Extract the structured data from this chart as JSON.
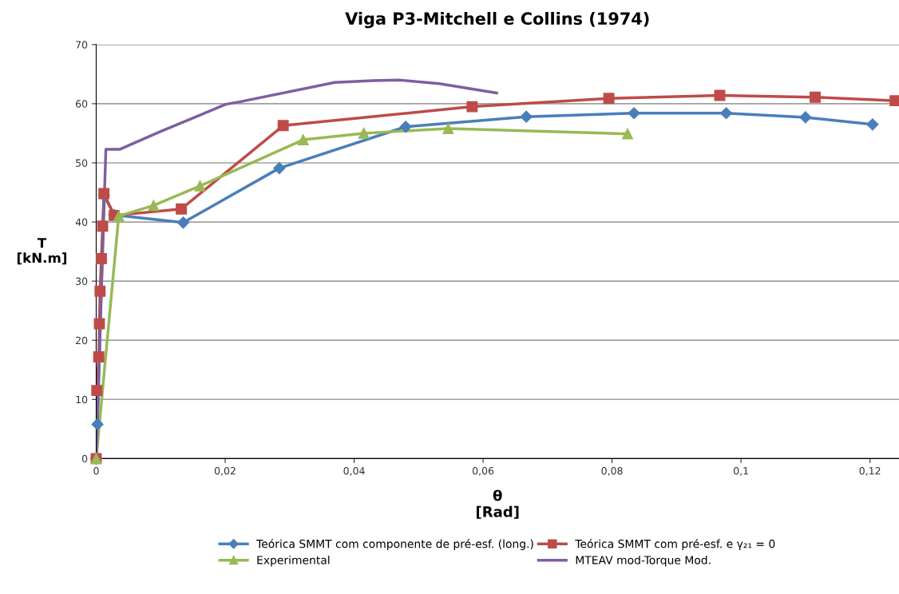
{
  "chart_data": {
    "type": "line",
    "title": "Viga P3-Mitchell e Collins (1974)",
    "xlabel": "θ\n[Rad]",
    "ylabel": "T\n[kN.m]",
    "xlim": [
      0,
      0.1245
    ],
    "ylim": [
      0,
      70
    ],
    "xticks": [
      0,
      {
        "value": 0.02,
        "label": "0,02"
      },
      {
        "value": 0.04,
        "label": "0,04"
      },
      {
        "value": 0.06,
        "label": "0,06"
      },
      {
        "value": 0.08,
        "label": "0,08"
      },
      {
        "value": 0.1,
        "label": "0,1"
      },
      {
        "value": 0.12,
        "label": "0,12"
      }
    ],
    "yticks": [
      0,
      10,
      20,
      30,
      40,
      50,
      60,
      70
    ],
    "grid": "y",
    "legend": "bottom",
    "series": [
      {
        "name": "Teórica SMMT com componente de pré-esf. (long.)",
        "color": "#4a7ebb",
        "marker": "diamond",
        "x": [
          0,
          0.0002,
          0.0012,
          0.0028,
          0.0135,
          0.0284,
          0.048,
          0.0667,
          0.0834,
          0.0977,
          0.11,
          0.1204
        ],
        "values": [
          0,
          5.8,
          44.5,
          41.2,
          39.9,
          49.1,
          56.1,
          57.8,
          58.4,
          58.4,
          57.7,
          56.5
        ]
      },
      {
        "name": "Teórica SMMT com pré-esf. e γ₂₁ = 0",
        "color": "#be4b48",
        "marker": "square",
        "x": [
          0,
          0.0001,
          0.0004,
          0.0005,
          0.0006,
          0.0008,
          0.001,
          0.0012,
          0.0028,
          0.0132,
          0.029,
          0.0583,
          0.0795,
          0.0967,
          0.1115,
          0.1239
        ],
        "values": [
          0,
          11.5,
          17.2,
          22.8,
          28.3,
          33.8,
          39.3,
          44.8,
          41.1,
          42.2,
          56.3,
          59.5,
          60.9,
          61.4,
          61.1,
          60.5
        ]
      },
      {
        "name": "Experimental",
        "color": "#98b954",
        "marker": "triangle",
        "x": [
          0,
          0.0035,
          0.0089,
          0.0161,
          0.0321,
          0.0415,
          0.0546,
          0.0824
        ],
        "values": [
          0,
          41,
          42.8,
          46.1,
          53.9,
          55,
          55.8,
          54.9
        ]
      },
      {
        "name": "MTEAV mod-Torque Mod.",
        "color": "#7d5fa0",
        "marker": "none",
        "x": [
          0,
          0.0015,
          0.0037,
          0.01,
          0.0201,
          0.0222,
          0.037,
          0.0429,
          0.047,
          0.0532,
          0.0621
        ],
        "values": [
          0,
          52.3,
          52.3,
          55.3,
          59.9,
          60.3,
          63.6,
          63.9,
          64,
          63.4,
          61.8
        ]
      }
    ]
  }
}
